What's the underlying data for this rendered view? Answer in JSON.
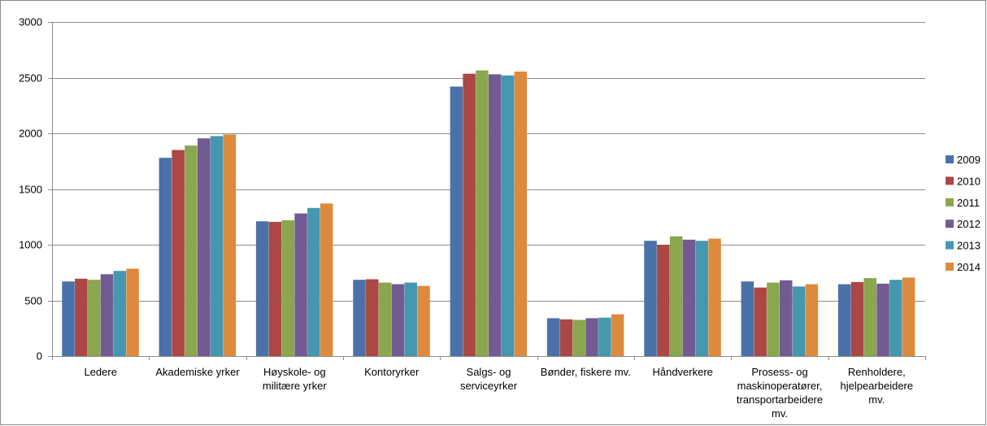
{
  "chart_data": {
    "type": "bar",
    "title": "",
    "xlabel": "",
    "ylabel": "",
    "ylim": [
      0,
      3000
    ],
    "yticks": [
      0,
      500,
      1000,
      1500,
      2000,
      2500,
      3000
    ],
    "grid": true,
    "legend_position": "right",
    "categories": [
      [
        "Ledere"
      ],
      [
        "Akademiske yrker"
      ],
      [
        "Høyskole- og",
        "militære yrker"
      ],
      [
        "Kontoryrker"
      ],
      [
        "Salgs- og",
        "serviceyrker"
      ],
      [
        "Bønder, fiskere mv."
      ],
      [
        "Håndverkere"
      ],
      [
        "Prosess- og",
        "maskinoperatører,",
        "transportarbeidere",
        "mv."
      ],
      [
        "Renholdere,",
        "hjelpearbeidere",
        "mv."
      ]
    ],
    "series": [
      {
        "name": "2009",
        "color": "#4a72a8",
        "values": [
          670,
          1780,
          1210,
          685,
          2420,
          340,
          1035,
          670,
          645
        ]
      },
      {
        "name": "2010",
        "color": "#ab4744",
        "values": [
          695,
          1850,
          1205,
          690,
          2535,
          330,
          1000,
          615,
          665
        ]
      },
      {
        "name": "2011",
        "color": "#8aa64e",
        "values": [
          685,
          1890,
          1220,
          660,
          2565,
          325,
          1075,
          660,
          700
        ]
      },
      {
        "name": "2012",
        "color": "#725a92",
        "values": [
          735,
          1955,
          1280,
          645,
          2530,
          340,
          1045,
          680,
          650
        ]
      },
      {
        "name": "2013",
        "color": "#4597b0",
        "values": [
          765,
          1975,
          1330,
          660,
          2520,
          345,
          1035,
          625,
          685
        ]
      },
      {
        "name": "2014",
        "color": "#dd8a3d",
        "values": [
          785,
          1990,
          1370,
          630,
          2555,
          375,
          1055,
          645,
          705
        ]
      }
    ]
  }
}
